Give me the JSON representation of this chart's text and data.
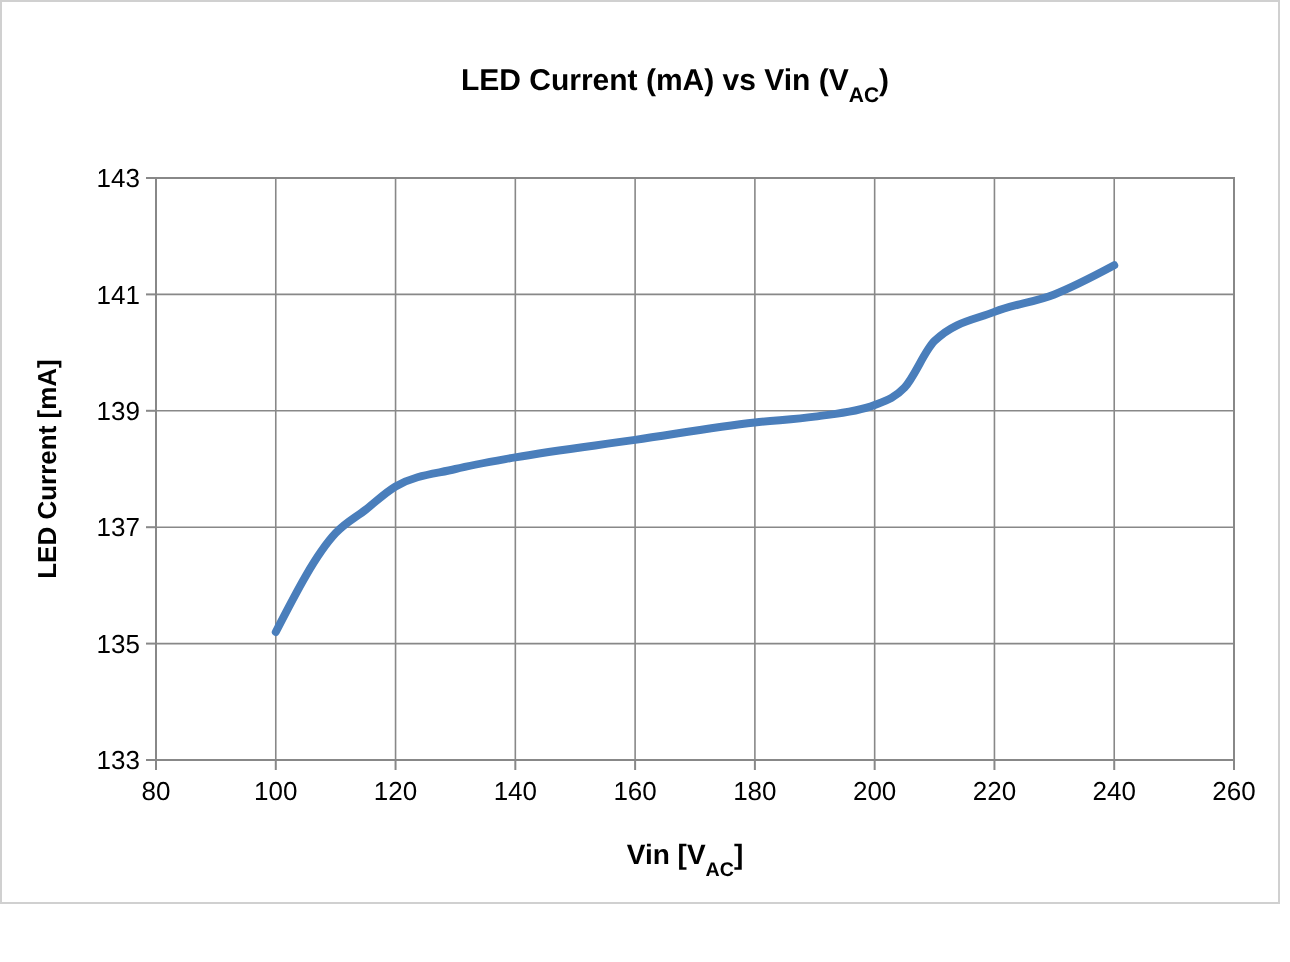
{
  "chart_data": {
    "type": "line",
    "title": "LED Current (mA) vs Vin (V$_{AC}$)",
    "xlabel": "Vin [V$_{AC}$]",
    "ylabel": "LED Current [mA]",
    "x": [
      100,
      110,
      115,
      120,
      130,
      140,
      160,
      180,
      190,
      200,
      205,
      210,
      220,
      230,
      240
    ],
    "series": [
      {
        "color": "#4a7ebb",
        "values": [
          135.2,
          136.9,
          137.3,
          137.7,
          138.0,
          138.2,
          138.5,
          138.8,
          138.9,
          139.1,
          139.4,
          140.2,
          140.7,
          141.0,
          141.5
        ]
      }
    ],
    "xlim": [
      80,
      260
    ],
    "xticks": [
      80,
      100,
      120,
      140,
      160,
      180,
      200,
      220,
      240,
      260
    ],
    "ylim": [
      133,
      143
    ],
    "yticks": [
      133,
      135,
      137,
      139,
      141,
      143
    ],
    "grid": true,
    "marker": "none",
    "line_style": "solid"
  }
}
